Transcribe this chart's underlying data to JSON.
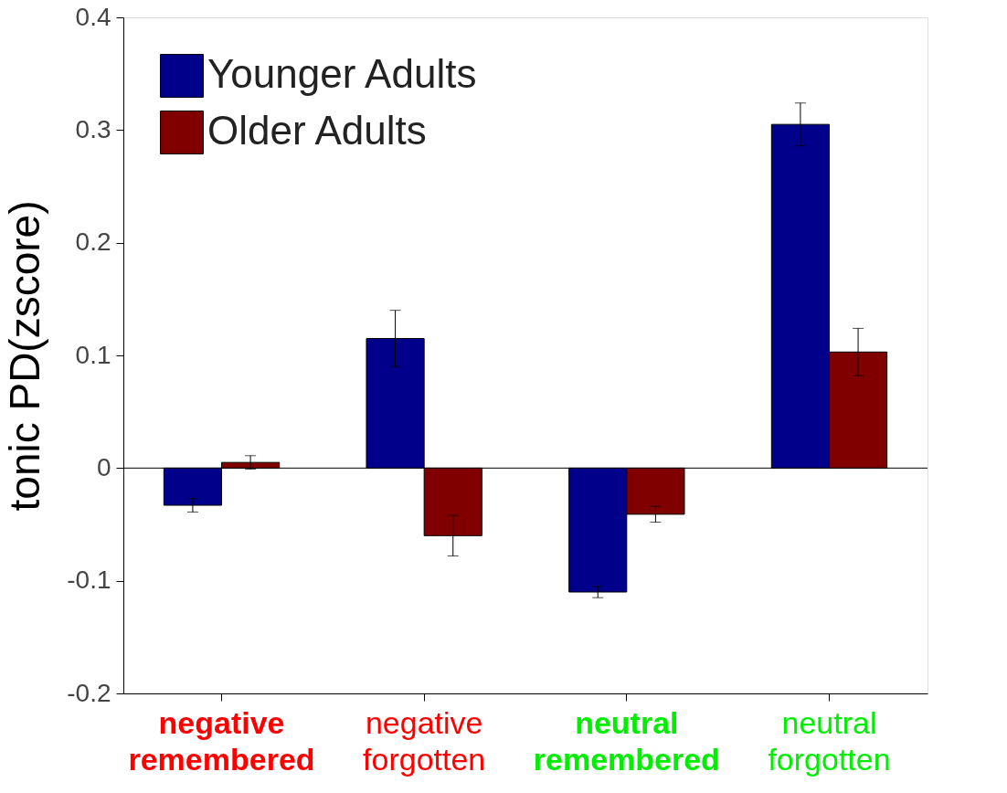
{
  "chart_data": {
    "type": "bar",
    "ylabel": "tonic PD(zscore)",
    "categories": [
      "negative\nremembered",
      "negative\nforgotten",
      "neutral\nremembered",
      "neutral\nforgotten"
    ],
    "series": [
      {
        "name": "Younger Adults",
        "color": "#00008b",
        "values": [
          -0.033,
          0.115,
          -0.11,
          0.305
        ],
        "errors": [
          0.006,
          0.025,
          0.005,
          0.019
        ]
      },
      {
        "name": "Older Adults",
        "color": "#800000",
        "values": [
          0.005,
          -0.06,
          -0.041,
          0.103
        ],
        "errors": [
          0.006,
          0.018,
          0.007,
          0.021
        ]
      }
    ],
    "ylim": [
      -0.2,
      0.4
    ],
    "yticks": [
      -0.2,
      -0.1,
      0,
      0.1,
      0.2,
      0.3,
      0.4
    ],
    "ref_lines": [
      {
        "axis": "y",
        "value": 0,
        "label": null,
        "color": "#000000"
      }
    ],
    "grid": false,
    "legend": "top left"
  }
}
